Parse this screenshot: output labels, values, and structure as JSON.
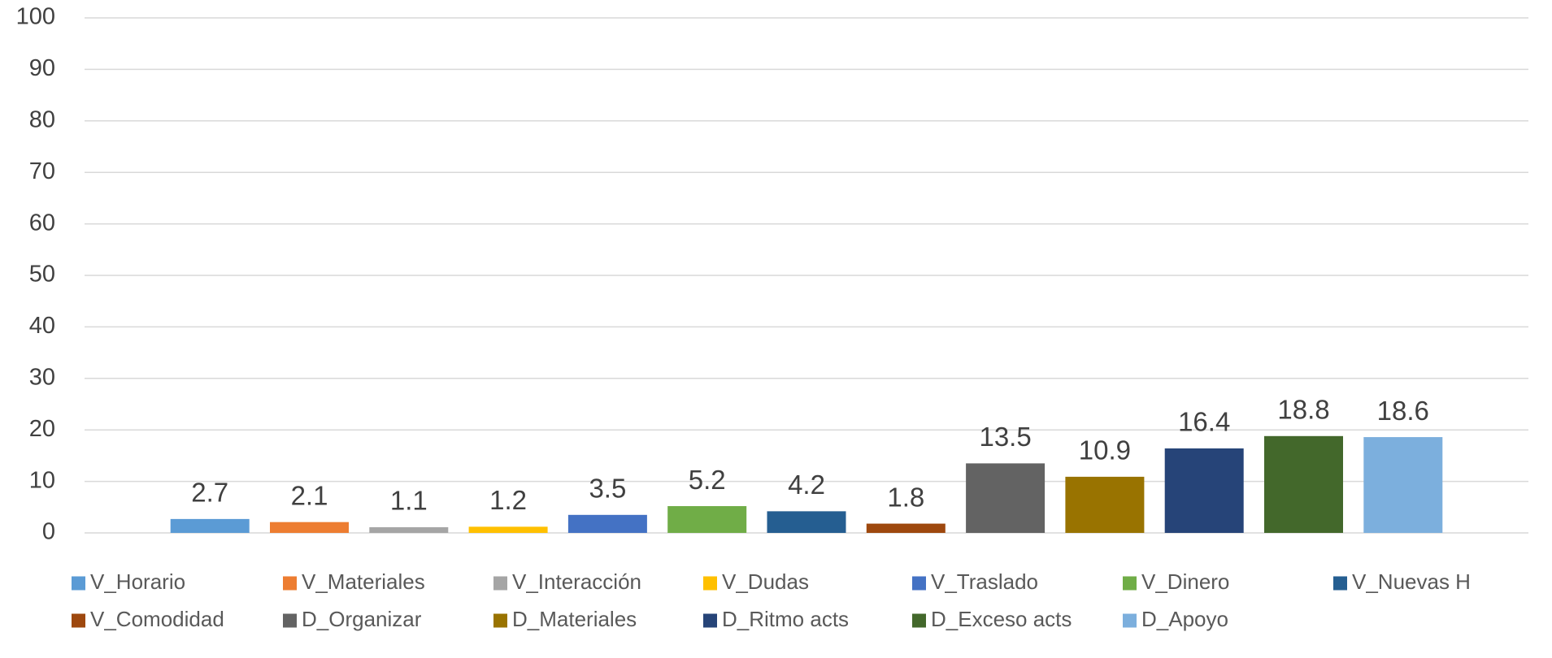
{
  "chart_data": {
    "type": "bar",
    "series": [
      {
        "name": "V_Horario",
        "color": "#5b9bd5",
        "values": [
          2.7
        ]
      },
      {
        "name": "V_Materiales",
        "color": "#ed7d31",
        "values": [
          2.1
        ]
      },
      {
        "name": "V_Interacción",
        "color": "#a5a5a5",
        "values": [
          1.1
        ]
      },
      {
        "name": "V_Dudas",
        "color": "#ffc000",
        "values": [
          1.2
        ]
      },
      {
        "name": "V_Traslado",
        "color": "#4472c4",
        "values": [
          3.5
        ]
      },
      {
        "name": "V_Dinero",
        "color": "#70ad47",
        "values": [
          5.2
        ]
      },
      {
        "name": "V_Nuevas H",
        "color": "#255e91",
        "values": [
          4.2
        ]
      },
      {
        "name": "V_Comodidad",
        "color": "#9e480e",
        "values": [
          1.8
        ]
      },
      {
        "name": "D_Organizar",
        "color": "#636363",
        "values": [
          13.5
        ]
      },
      {
        "name": "D_Materiales",
        "color": "#997300",
        "values": [
          10.9
        ]
      },
      {
        "name": "D_Ritmo acts",
        "color": "#264478",
        "values": [
          16.4
        ]
      },
      {
        "name": "D_Exceso acts",
        "color": "#43682b",
        "values": [
          18.8
        ]
      },
      {
        "name": "D_Apoyo",
        "color": "#7cafdd",
        "values": [
          18.6
        ]
      }
    ],
    "ylim": [
      0,
      100
    ],
    "yticks": [
      0,
      10,
      20,
      30,
      40,
      50,
      60,
      70,
      80,
      90,
      100
    ],
    "grid": true,
    "legend": "bottom"
  }
}
